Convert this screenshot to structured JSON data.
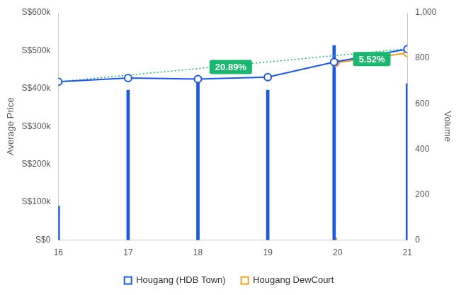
{
  "chart_data": {
    "type": "line",
    "y_label": "Average Price",
    "y2_label": "Volume",
    "xlim": [
      16,
      21
    ],
    "xticks": [
      16,
      17,
      18,
      19,
      20,
      21
    ],
    "ylim": [
      0,
      600000
    ],
    "yticks": [
      {
        "value": 0,
        "label": "S$0"
      },
      {
        "value": 100000,
        "label": "S$100k"
      },
      {
        "value": 200000,
        "label": "S$200k"
      },
      {
        "value": 300000,
        "label": "S$300k"
      },
      {
        "value": 400000,
        "label": "S$400k"
      },
      {
        "value": 500000,
        "label": "S$500k"
      },
      {
        "value": 600000,
        "label": "S$600k"
      }
    ],
    "y2lim": [
      0,
      1000
    ],
    "y2ticks": [
      0,
      200,
      400,
      600,
      800,
      {
        "value": 1000,
        "label": "1,000"
      }
    ],
    "grid": false,
    "legend": "bottom",
    "series": [
      {
        "name": "Hougang (HDB Town)",
        "type": "line",
        "color": "#1a56f0",
        "marker": "circle",
        "x": [
          16,
          17,
          18,
          19,
          19.95,
          21
        ],
        "values": [
          418000,
          428000,
          425000,
          430000,
          470000,
          504000
        ],
        "volume": [
          150,
          660,
          697,
          660,
          856,
          688
        ]
      },
      {
        "name": "Hougang DewCourt",
        "type": "line",
        "color": "#f5a01e",
        "marker": "circle",
        "x": [
          19.97,
          21
        ],
        "values": [
          468000,
          494000
        ],
        "volume": [
          10,
          2
        ]
      },
      {
        "type": "line",
        "color": "#18b96f",
        "line_style": "dotted",
        "x": [
          16,
          21
        ],
        "values": [
          418000,
          505000
        ]
      },
      {
        "type": "line",
        "color": "#18b96f",
        "line_style": "dotted",
        "x": [
          19.97,
          21
        ],
        "values": [
          468000,
          494000
        ]
      }
    ],
    "annotations": [
      {
        "text": "20.89%",
        "x": 18.47,
        "y": 457000,
        "color": "#18b96f"
      },
      {
        "text": "5.52%",
        "x": 20.49,
        "y": 478000,
        "color": "#18b96f"
      }
    ]
  }
}
